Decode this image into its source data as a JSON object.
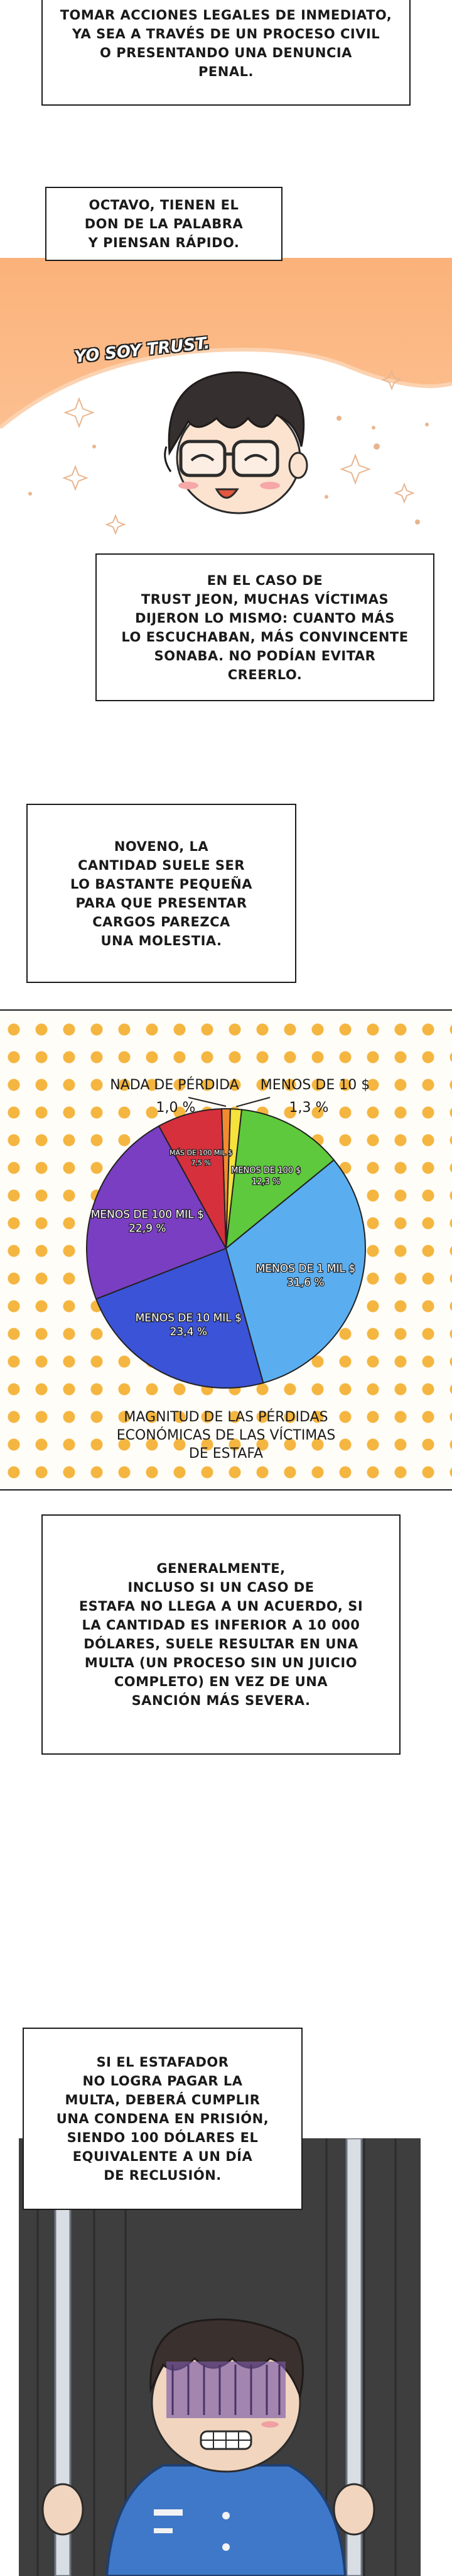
{
  "captions": {
    "top": "TOMAR ACCIONES LEGALES DE INMEDIATO,\nYA SEA A TRAVÉS DE UN PROCESO CIVIL\nO PRESENTANDO UNA DENUNCIA\nPENAL.",
    "octavo": "OCTAVO, TIENEN EL\nDON DE LA PALABRA\nY PIENSAN RÁPIDO.",
    "trust_jeon": "EN EL CASO DE\nTRUST JEON, MUCHAS VÍCTIMAS\nDIJERON LO MISMO: CUANTO MÁS\nLO ESCUCHABAN, MÁS CONVINCENTE\nSONABA. NO PODÍAN EVITAR\nCREERLO.",
    "noveno": "NOVENO, LA\nCANTIDAD SUELE SER\nLO BASTANTE PEQUEÑA\nPARA QUE PRESENTAR\nCARGOS PAREZCA\nUNA MOLESTIA.",
    "generalmente": "GENERALMENTE,\nINCLUSO SI UN CASO DE\nESTAFA NO LLEGA A UN ACUERDO, SI\nLA CANTIDAD ES INFERIOR A 10 000\nDÓLARES, SUELE RESULTAR EN UNA\nMULTA (UN PROCESO SIN UN JUICIO\nCOMPLETO) EN VEZ DE UNA\nSANCIÓN MÁS SEVERA.",
    "estafador": "SI EL ESTAFADOR\nNO LOGRA PAGAR LA\nMULTA, DEBERÁ CUMPLIR\nUNA CONDENA EN PRISIÓN,\nSIENDO 100 DÓLARES EL\nEQUIVALENTE A UN DÍA\nDE RECLUSIÓN."
  },
  "banner": {
    "speech": "YO SOY TRUST."
  },
  "chart_data": {
    "type": "pie",
    "title": "MAGNITUD DE LAS PÉRDIDAS\nECONÓMICAS DE LAS VÍCTIMAS\nDE ESTAFA",
    "slices": [
      {
        "label": "NADA DE PÉRDIDA",
        "value": 1.0,
        "display": "1,0 %",
        "color": "#f28b2f"
      },
      {
        "label": "MENOS DE 10 $",
        "value": 1.3,
        "display": "1,3 %",
        "color": "#f5e23a"
      },
      {
        "label": "MENOS DE 100 $",
        "value": 12.3,
        "display": "12,3 %",
        "color": "#5ec93c"
      },
      {
        "label": "MENOS DE 1 MIL $",
        "value": 31.6,
        "display": "31,6 %",
        "color": "#5aaef0"
      },
      {
        "label": "MENOS DE 10 MIL $",
        "value": 23.4,
        "display": "23,4 %",
        "color": "#3b53d6"
      },
      {
        "label": "MENOS DE 100 MIL $",
        "value": 22.9,
        "display": "22,9 %",
        "color": "#7a3ec2"
      },
      {
        "label": "MÁS DE 100 MIL $",
        "value": 7.5,
        "display": "7,5 %",
        "color": "#d6303d"
      }
    ]
  }
}
